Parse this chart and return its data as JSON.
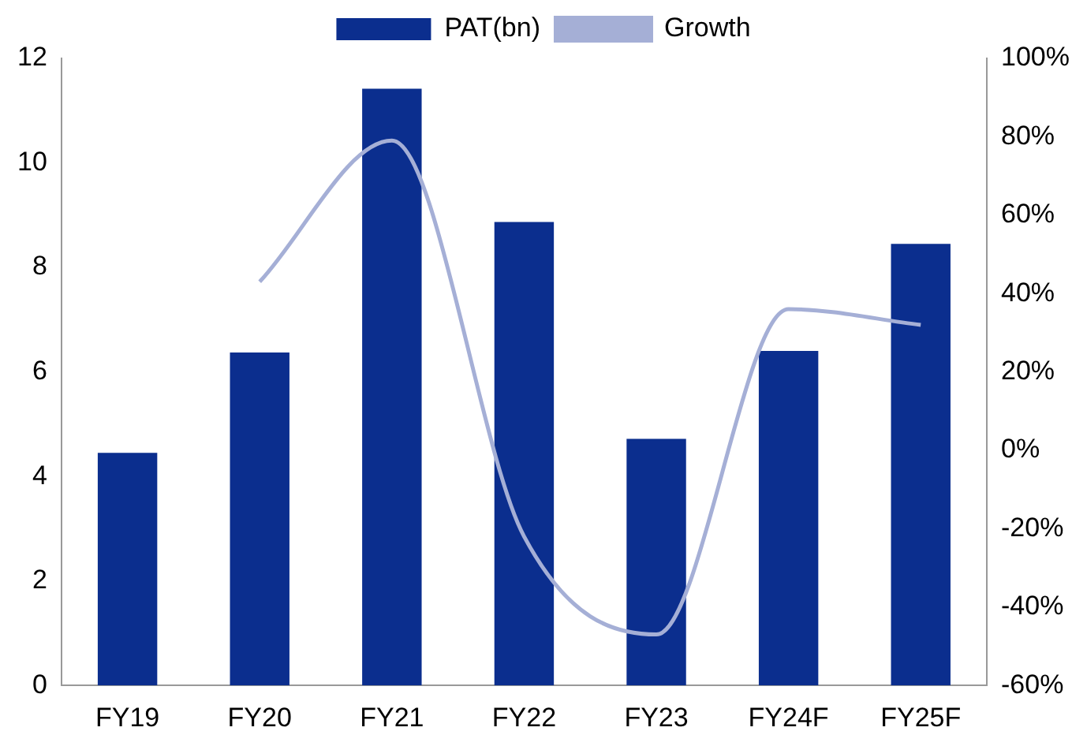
{
  "chart_data": {
    "type": "bar",
    "categories": [
      "FY19",
      "FY20",
      "FY21",
      "FY22",
      "FY23",
      "FY24F",
      "FY25F"
    ],
    "series": [
      {
        "name": "PAT(bn)",
        "color": "#0b2e8e",
        "values": [
          4.45,
          6.37,
          11.42,
          8.87,
          4.72,
          6.4,
          8.45
        ]
      },
      {
        "name": "Growth",
        "type": "line",
        "axis": "y2",
        "color": "#a5afd6",
        "values": [
          null,
          43,
          79,
          -22,
          -47,
          36,
          32
        ]
      }
    ],
    "ylim": [
      0,
      12
    ],
    "yticks": [
      0,
      2,
      4,
      6,
      8,
      10,
      12
    ],
    "y2lim": [
      -60,
      100
    ],
    "y2ticks": [
      {
        "value": -60,
        "label": "-60%"
      },
      {
        "value": -40,
        "label": "-40%"
      },
      {
        "value": -20,
        "label": "-20%"
      },
      {
        "value": 0,
        "label": "0%"
      },
      {
        "value": 20,
        "label": "20%"
      },
      {
        "value": 40,
        "label": "40%"
      },
      {
        "value": 60,
        "label": "60%"
      },
      {
        "value": 80,
        "label": "80%"
      },
      {
        "value": 100,
        "label": "100%"
      }
    ],
    "grid": false,
    "legend": "top",
    "marker": "none"
  }
}
